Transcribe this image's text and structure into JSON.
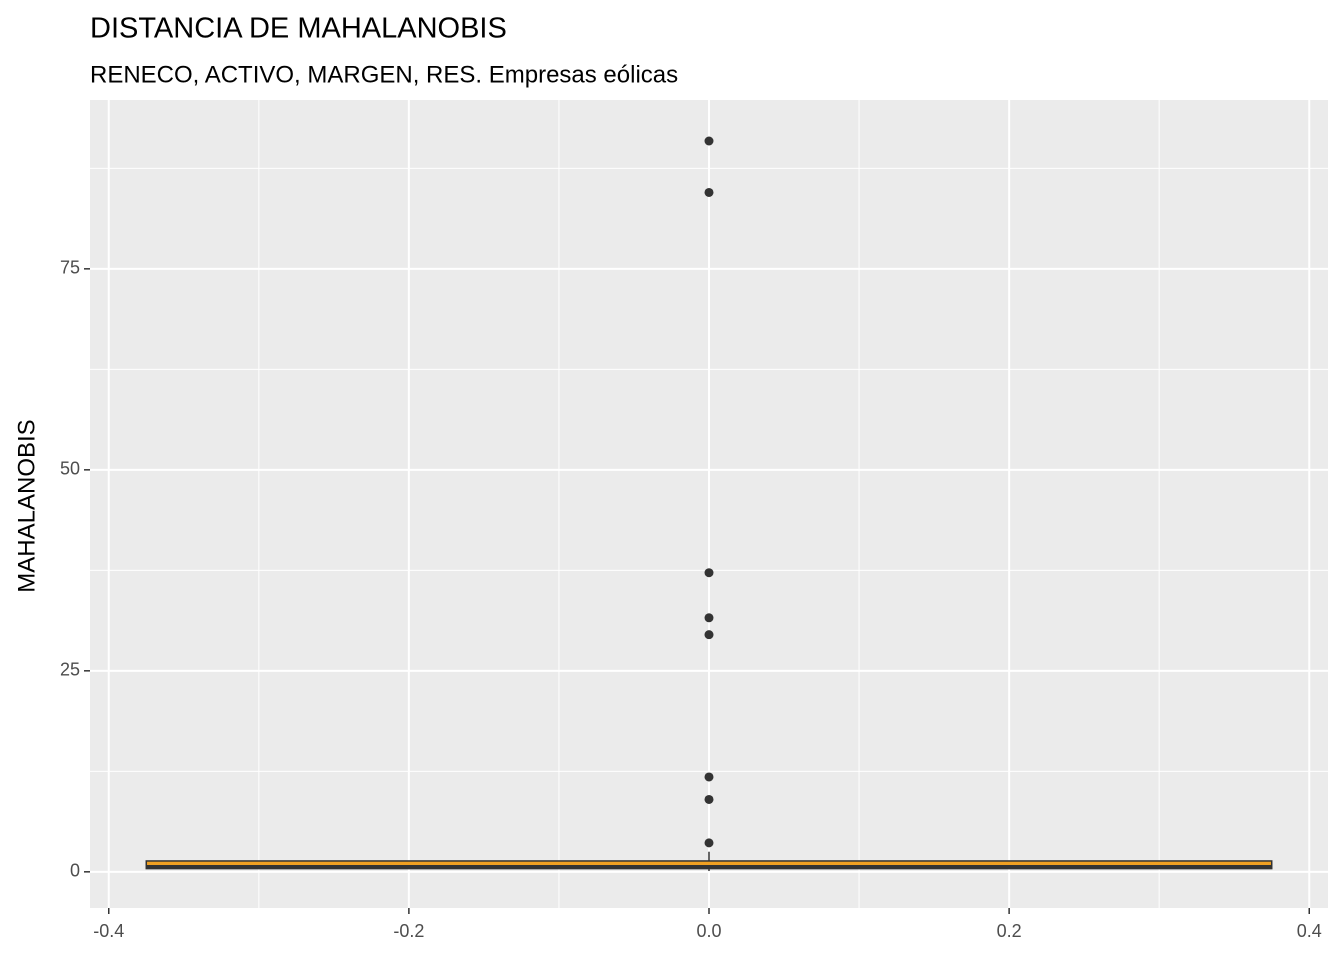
{
  "chart_data": {
    "type": "boxplot",
    "title": "DISTANCIA DE MAHALANOBIS",
    "subtitle": "RENECO, ACTIVO, MARGEN, RES. Empresas eólicas",
    "ylabel": "MAHALANOBIS",
    "box": {
      "x": 0,
      "width": 0.75,
      "whisker_low": 0.1,
      "q1": 0.4,
      "median": 0.6,
      "q3": 1.35,
      "whisker_high": 2.5,
      "fill": "#f0a022",
      "color": "#333333"
    },
    "outliers": [
      90.9,
      84.5,
      37.2,
      31.6,
      29.5,
      11.8,
      9.0,
      3.6
    ],
    "xlim": [
      -0.4125,
      0.4125
    ],
    "ylim": [
      -4.5,
      96
    ],
    "xticks": [
      -0.4,
      -0.2,
      {
        "value": 0,
        "label": "0.0"
      },
      0.2,
      0.4
    ],
    "yticks": [
      0,
      25,
      50,
      75
    ],
    "xminorticks": [
      -0.3,
      -0.1,
      0.1,
      0.3
    ],
    "yminorticks": [
      12.5,
      37.5,
      62.5,
      87.5
    ],
    "grid": true
  }
}
